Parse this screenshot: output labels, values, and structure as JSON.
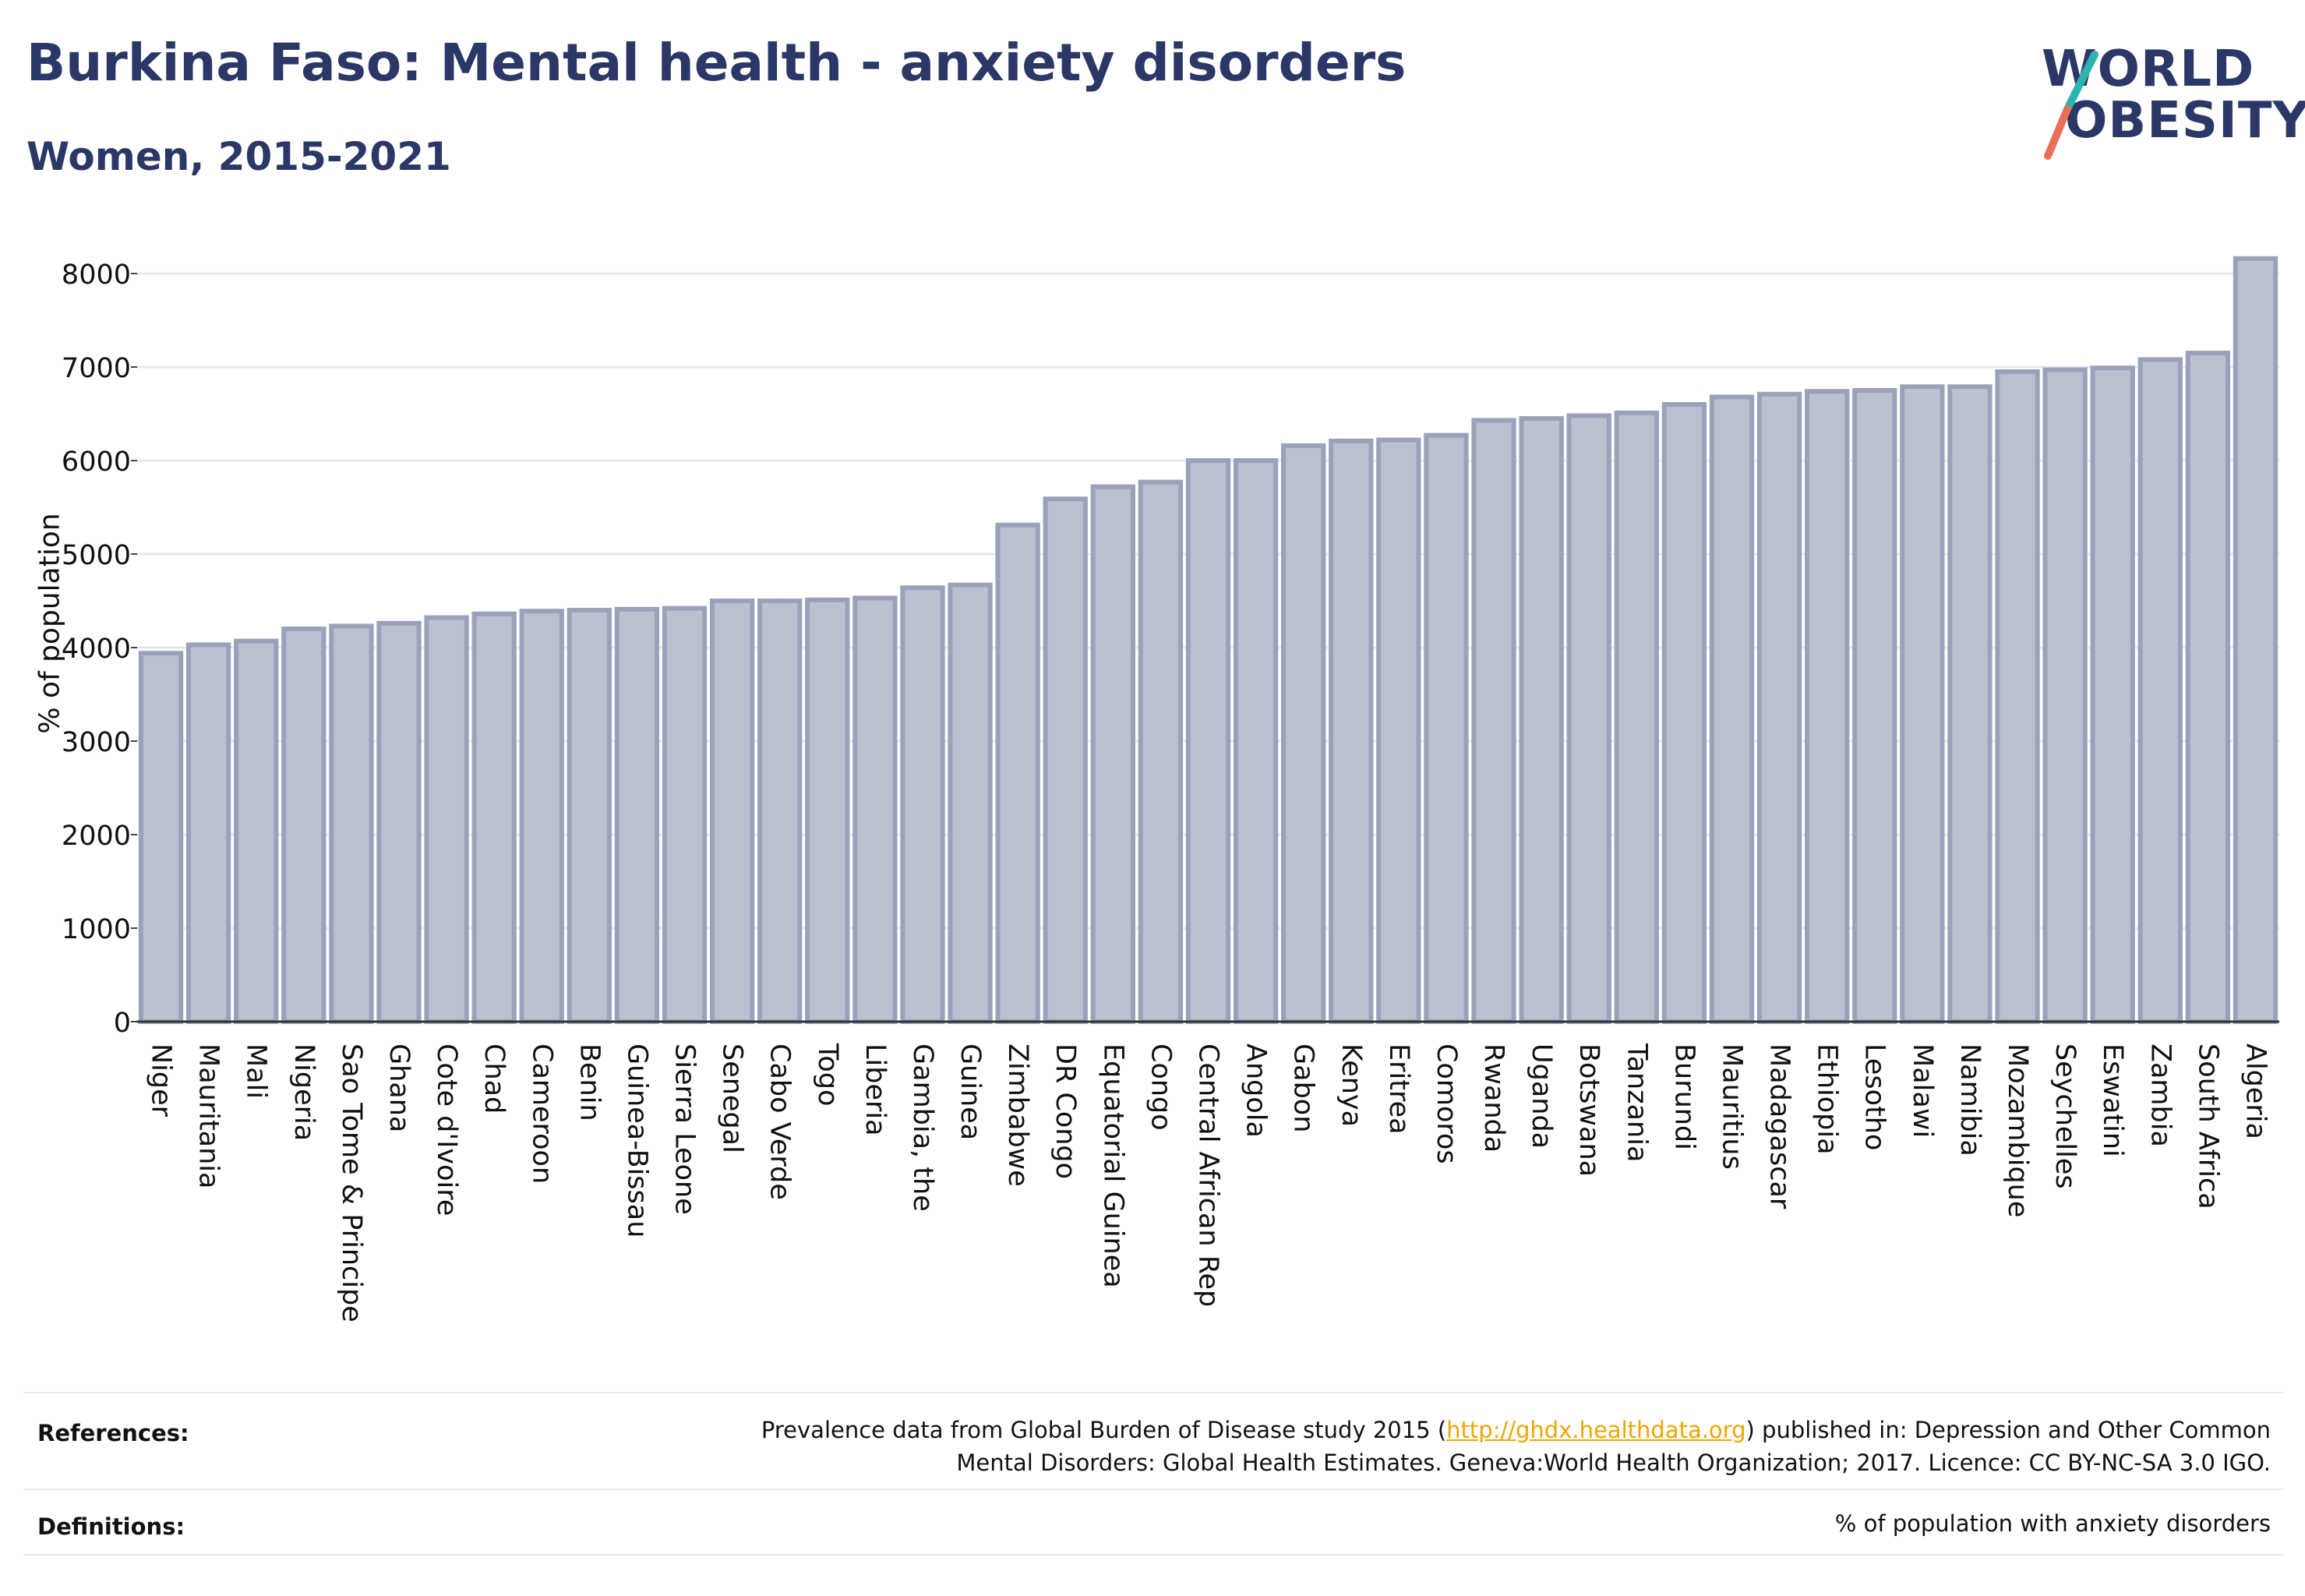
{
  "title": "Burkina Faso: Mental health - anxiety disorders",
  "subtitle": "Women, 2015-2021",
  "logo": {
    "line1": "WORLD",
    "line2": "OBESITY"
  },
  "colors": {
    "title": "#2b3766",
    "bar_fill": "#bcc1d0",
    "bar_stroke": "#9aa1bb",
    "logo_teal": "#2cb5b0",
    "logo_coral": "#e8705a",
    "link": "#f0a500"
  },
  "chart_data": {
    "type": "bar",
    "ylabel": "% of population",
    "ylim": [
      0,
      8300
    ],
    "yticks": [
      0,
      1000,
      2000,
      3000,
      4000,
      5000,
      6000,
      7000,
      8000
    ],
    "grid": true,
    "categories": [
      "Niger",
      "Mauritania",
      "Mali",
      "Nigeria",
      "Sao Tome & Principe",
      "Ghana",
      "Cote d'Ivoire",
      "Chad",
      "Cameroon",
      "Benin",
      "Guinea-Bissau",
      "Sierra Leone",
      "Senegal",
      "Cabo Verde",
      "Togo",
      "Liberia",
      "Gambia, the",
      "Guinea",
      "Zimbabwe",
      "DR Congo",
      "Equatorial Guinea",
      "Congo",
      "Central African Rep",
      "Angola",
      "Gabon",
      "Kenya",
      "Eritrea",
      "Comoros",
      "Rwanda",
      "Uganda",
      "Botswana",
      "Tanzania",
      "Burundi",
      "Mauritius",
      "Madagascar",
      "Ethiopia",
      "Lesotho",
      "Malawi",
      "Namibia",
      "Mozambique",
      "Seychelles",
      "Eswatini",
      "Zambia",
      "South Africa",
      "Algeria"
    ],
    "values": [
      3940,
      4030,
      4070,
      4200,
      4230,
      4260,
      4320,
      4360,
      4390,
      4400,
      4410,
      4420,
      4500,
      4500,
      4510,
      4530,
      4640,
      4670,
      5310,
      5590,
      5720,
      5770,
      6000,
      6000,
      6160,
      6210,
      6220,
      6270,
      6430,
      6450,
      6480,
      6510,
      6600,
      6680,
      6710,
      6740,
      6750,
      6790,
      6790,
      6950,
      6970,
      6990,
      7080,
      7150,
      8160
    ]
  },
  "footer": {
    "references_label": "References:",
    "references_line1_pre": "Prevalence data from Global Burden of Disease study 2015 (",
    "references_link": "http://ghdx.healthdata.org",
    "references_line1_post": ") published in: Depression and Other Common",
    "references_line2": "Mental Disorders: Global Health Estimates. Geneva:World Health Organization; 2017. Licence: CC BY-NC-SA 3.0 IGO.",
    "definitions_label": "Definitions:",
    "definitions_text": "% of population with anxiety disorders"
  }
}
